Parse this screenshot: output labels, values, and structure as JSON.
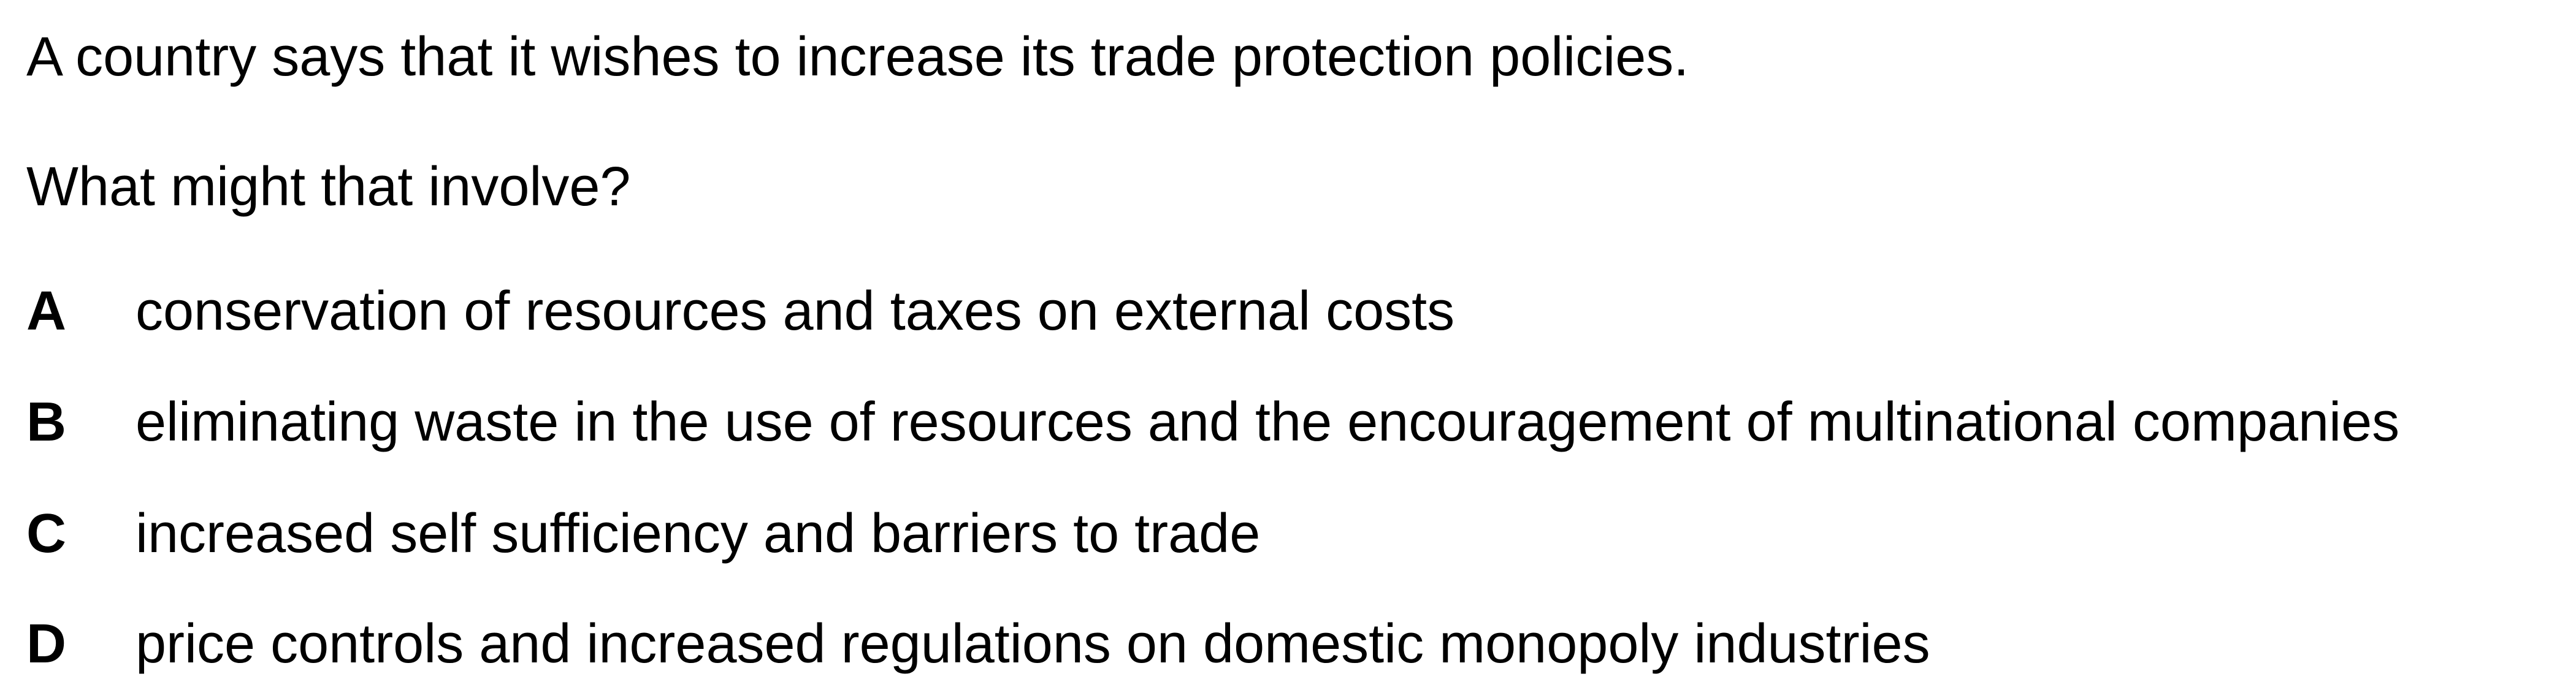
{
  "question": {
    "stem": "A country says that it wishes to increase its trade protection policies.",
    "prompt": "What might that involve?"
  },
  "options": [
    {
      "letter": "A",
      "text": "conservation of resources and taxes on external costs"
    },
    {
      "letter": "B",
      "text": "eliminating waste in the use of resources and the encouragement of multinational companies"
    },
    {
      "letter": "C",
      "text": "increased self sufficiency and barriers to trade"
    },
    {
      "letter": "D",
      "text": "price controls and increased regulations on domestic monopoly industries"
    }
  ]
}
